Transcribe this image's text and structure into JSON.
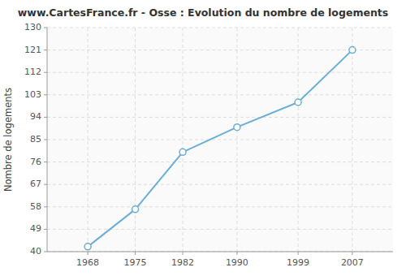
{
  "chart_data": {
    "type": "line",
    "title": "www.CartesFrance.fr - Osse : Evolution du nombre de logements",
    "ylabel": "Nombre de logements",
    "x": [
      1968,
      1975,
      1982,
      1990,
      1999,
      2007
    ],
    "values": [
      42,
      57,
      80,
      90,
      100,
      121
    ],
    "color": "#6baed6",
    "marker": "circle",
    "xlim": [
      1962,
      2013
    ],
    "ylim": [
      40,
      130
    ],
    "xticks": [
      1968,
      1975,
      1982,
      1990,
      1999,
      2007
    ],
    "yticks": [
      40,
      49,
      58,
      67,
      76,
      85,
      94,
      103,
      112,
      121,
      130
    ],
    "grid": true
  }
}
